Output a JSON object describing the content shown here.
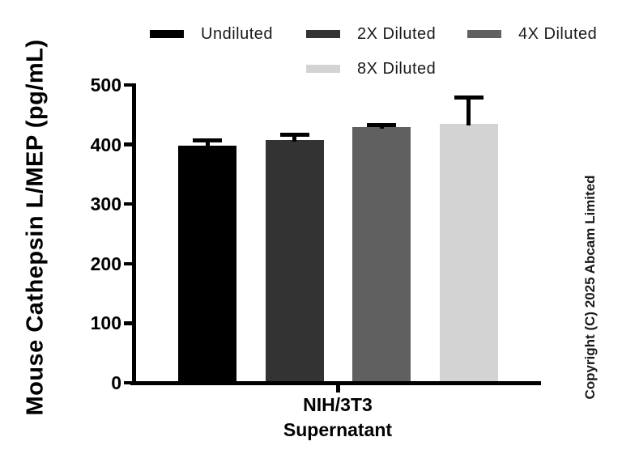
{
  "chart_data": {
    "type": "bar",
    "title": "",
    "ylabel": "Mouse Cathepsin L/MEP (pg/mL)",
    "xlabel_lines": [
      "NIH/3T3",
      "Supernatant"
    ],
    "ylim": [
      0,
      500
    ],
    "yticks": [
      0,
      100,
      200,
      300,
      400,
      500
    ],
    "grid": false,
    "legend_position": "top",
    "error_bars": "sd-upper-with-cap",
    "categories": [
      "NIH/3T3 Supernatant"
    ],
    "series": [
      {
        "name": "Undiluted",
        "value": 398,
        "error_plus": 13,
        "color": "#000000"
      },
      {
        "name": "2X Diluted",
        "value": 408,
        "error_plus": 12,
        "color": "#333333"
      },
      {
        "name": "4X Diluted",
        "value": 430,
        "error_plus": 6,
        "color": "#606060"
      },
      {
        "name": "8X Diluted",
        "value": 435,
        "error_plus": 48,
        "color": "#d3d3d3"
      }
    ]
  },
  "copyright": "Copyright (C) 2025 Abcam Limited"
}
